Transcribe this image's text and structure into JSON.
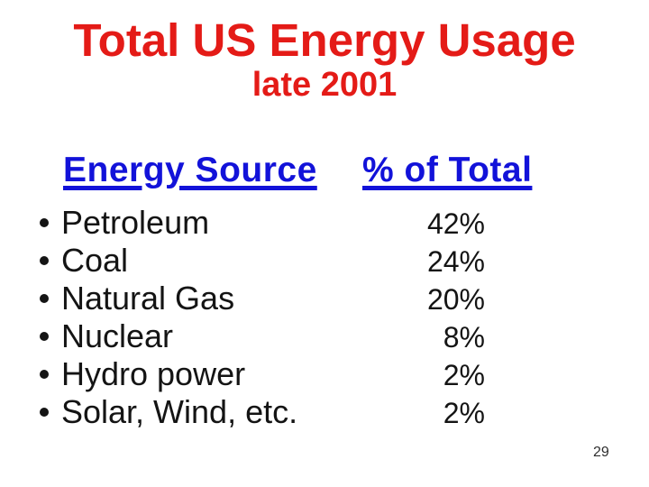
{
  "slide": {
    "title": "Total US Energy Usage",
    "subtitle": "late 2001",
    "page_number": "29",
    "colors": {
      "title_red": "#e41b17",
      "header_blue": "#1212d9",
      "body_text": "#141414",
      "background": "#ffffff"
    }
  },
  "table": {
    "col1_header": "Energy Source",
    "col2_header": "% of Total",
    "rows": [
      {
        "label": "Petroleum",
        "value": "42%"
      },
      {
        "label": "Coal",
        "value": "24%"
      },
      {
        "label": "Natural Gas",
        "value": "20%"
      },
      {
        "label": "Nuclear",
        "value": "8%"
      },
      {
        "label": "Hydro power",
        "value": "2%"
      },
      {
        "label": "Solar, Wind, etc.",
        "value": "2%"
      }
    ]
  },
  "chart_data": {
    "type": "table",
    "title": "Total US Energy Usage",
    "subtitle": "late 2001",
    "columns": [
      "Energy Source",
      "% of Total"
    ],
    "categories": [
      "Petroleum",
      "Coal",
      "Natural Gas",
      "Nuclear",
      "Hydro power",
      "Solar, Wind, etc."
    ],
    "values": [
      42,
      24,
      20,
      8,
      2,
      2
    ],
    "unit": "%"
  }
}
